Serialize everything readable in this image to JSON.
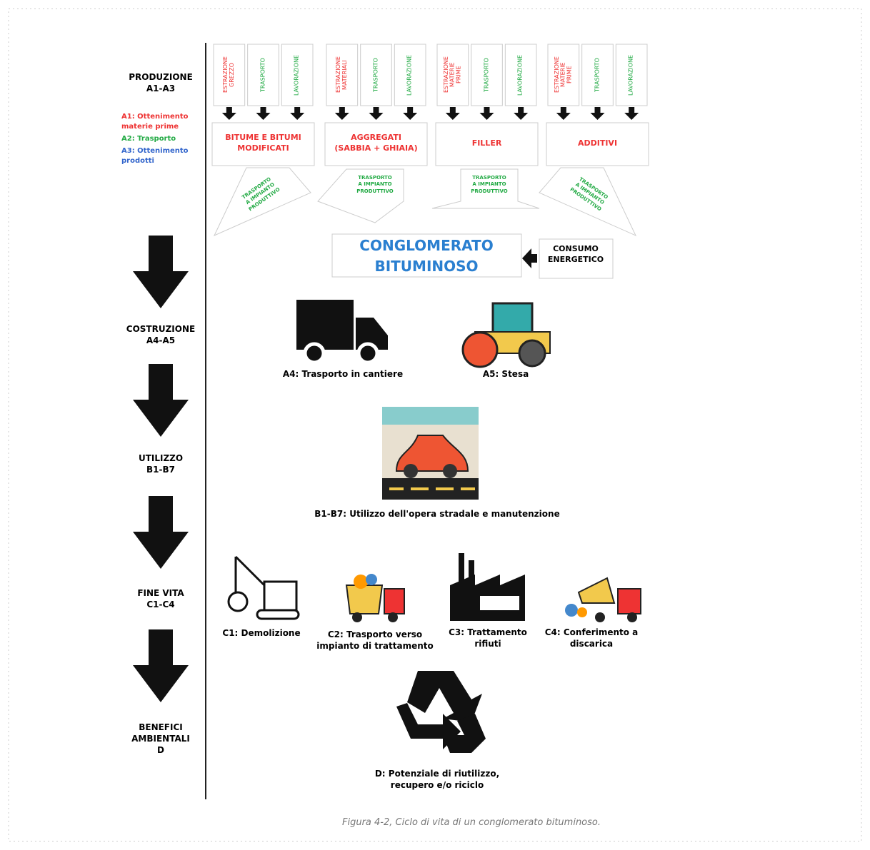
{
  "stages": [
    "PRODUZIONE\nA1-A3",
    "COSTRUZIONE\nA4-A5",
    "UTILIZZO\nB1-B7",
    "FINE VITA\nC1-C4",
    "BENEFICI\nAMBIENTALI\nD"
  ],
  "legend": [
    "A1: Ottenimento\nmaterie prime",
    "A2: Trasporto",
    "A3: Ottenimento\nprodotti"
  ],
  "materials": [
    {
      "name": "BITUME E BITUMI\nMODIFICATI",
      "steps": [
        "ESTRAZIONE\nGREZZO",
        "TRASPORTO",
        "LAVORAZIONE"
      ]
    },
    {
      "name": "AGGREGATI\n(SABBIA + GHIAIA)",
      "steps": [
        "ESTRAZIONE\nMATERIALI",
        "TRASPORTO",
        "LAVORAZIONE"
      ]
    },
    {
      "name": "FILLER",
      "steps": [
        "ESTRAZIONE\nMATERIE\nPRIME",
        "TRASPORTO",
        "LAVORAZIONE"
      ]
    },
    {
      "name": "ADDITIVI",
      "steps": [
        "ESTRAZIONE\nMATERIE\nPRIME",
        "TRASPORTO",
        "LAVORAZIONE"
      ]
    }
  ],
  "transports": [
    "TRASPORTO\nA IMPIANTO\nPRODUTTIVO",
    "TRASPORTO\nA IMPIANTO\nPRODUTTIVO",
    "TRASPORTO\nA IMPIANTO\nPRODUTTIVO",
    "TRASPORTO\nA IMPIANTO\nPRODUTTIVO"
  ],
  "product": "CONGLOMERATO\nBITUMINOSO",
  "energy": "CONSUMO\nENERGETICO",
  "phases": [
    "A4: Trasporto in cantiere",
    "A5: Stesa",
    "B1-B7: Utilizzo dell'opera stradale e manutenzione",
    "C1: Demolizione",
    "C2: Trasporto verso\nimpianto di trattamento",
    "C3: Trattamento\nrifiuti",
    "C4: Conferimento a\ndiscarica",
    "D: Potenziale di riutilizzo,\nrecupero e/o riciclo"
  ],
  "caption": "Figura 4-2, Ciclo di vita di un conglomerato bituminoso."
}
